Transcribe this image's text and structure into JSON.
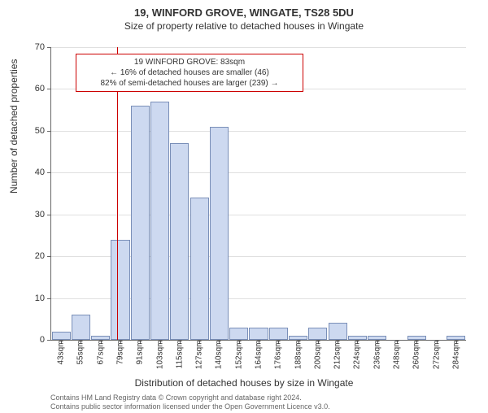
{
  "title_main": "19, WINFORD GROVE, WINGATE, TS28 5DU",
  "title_sub": "Size of property relative to detached houses in Wingate",
  "ylabel": "Number of detached properties",
  "xlabel": "Distribution of detached houses by size in Wingate",
  "footer1": "Contains HM Land Registry data © Crown copyright and database right 2024.",
  "footer2": "Contains public sector information licensed under the Open Government Licence v3.0.",
  "annotation": {
    "line1": "19 WINFORD GROVE: 83sqm",
    "line2": "← 16% of detached houses are smaller (46)",
    "line3": "82% of semi-detached houses are larger (239) →"
  },
  "chart": {
    "type": "histogram",
    "ylim": [
      0,
      70
    ],
    "ytick_step": 10,
    "background_color": "#ffffff",
    "grid_color": "#e0e0e0",
    "bar_fill": "#cdd9f0",
    "bar_border": "#7a8fb8",
    "marker_color": "#cc0000",
    "marker_x_sqm": 83,
    "categories": [
      "43sqm",
      "55sqm",
      "67sqm",
      "79sqm",
      "91sqm",
      "103sqm",
      "115sqm",
      "127sqm",
      "140sqm",
      "152sqm",
      "164sqm",
      "176sqm",
      "188sqm",
      "200sqm",
      "212sqm",
      "224sqm",
      "236sqm",
      "248sqm",
      "260sqm",
      "272sqm",
      "284sqm"
    ],
    "values": [
      2,
      6,
      1,
      24,
      56,
      57,
      47,
      34,
      51,
      3,
      3,
      3,
      1,
      3,
      4,
      1,
      1,
      0,
      1,
      0,
      1
    ]
  }
}
